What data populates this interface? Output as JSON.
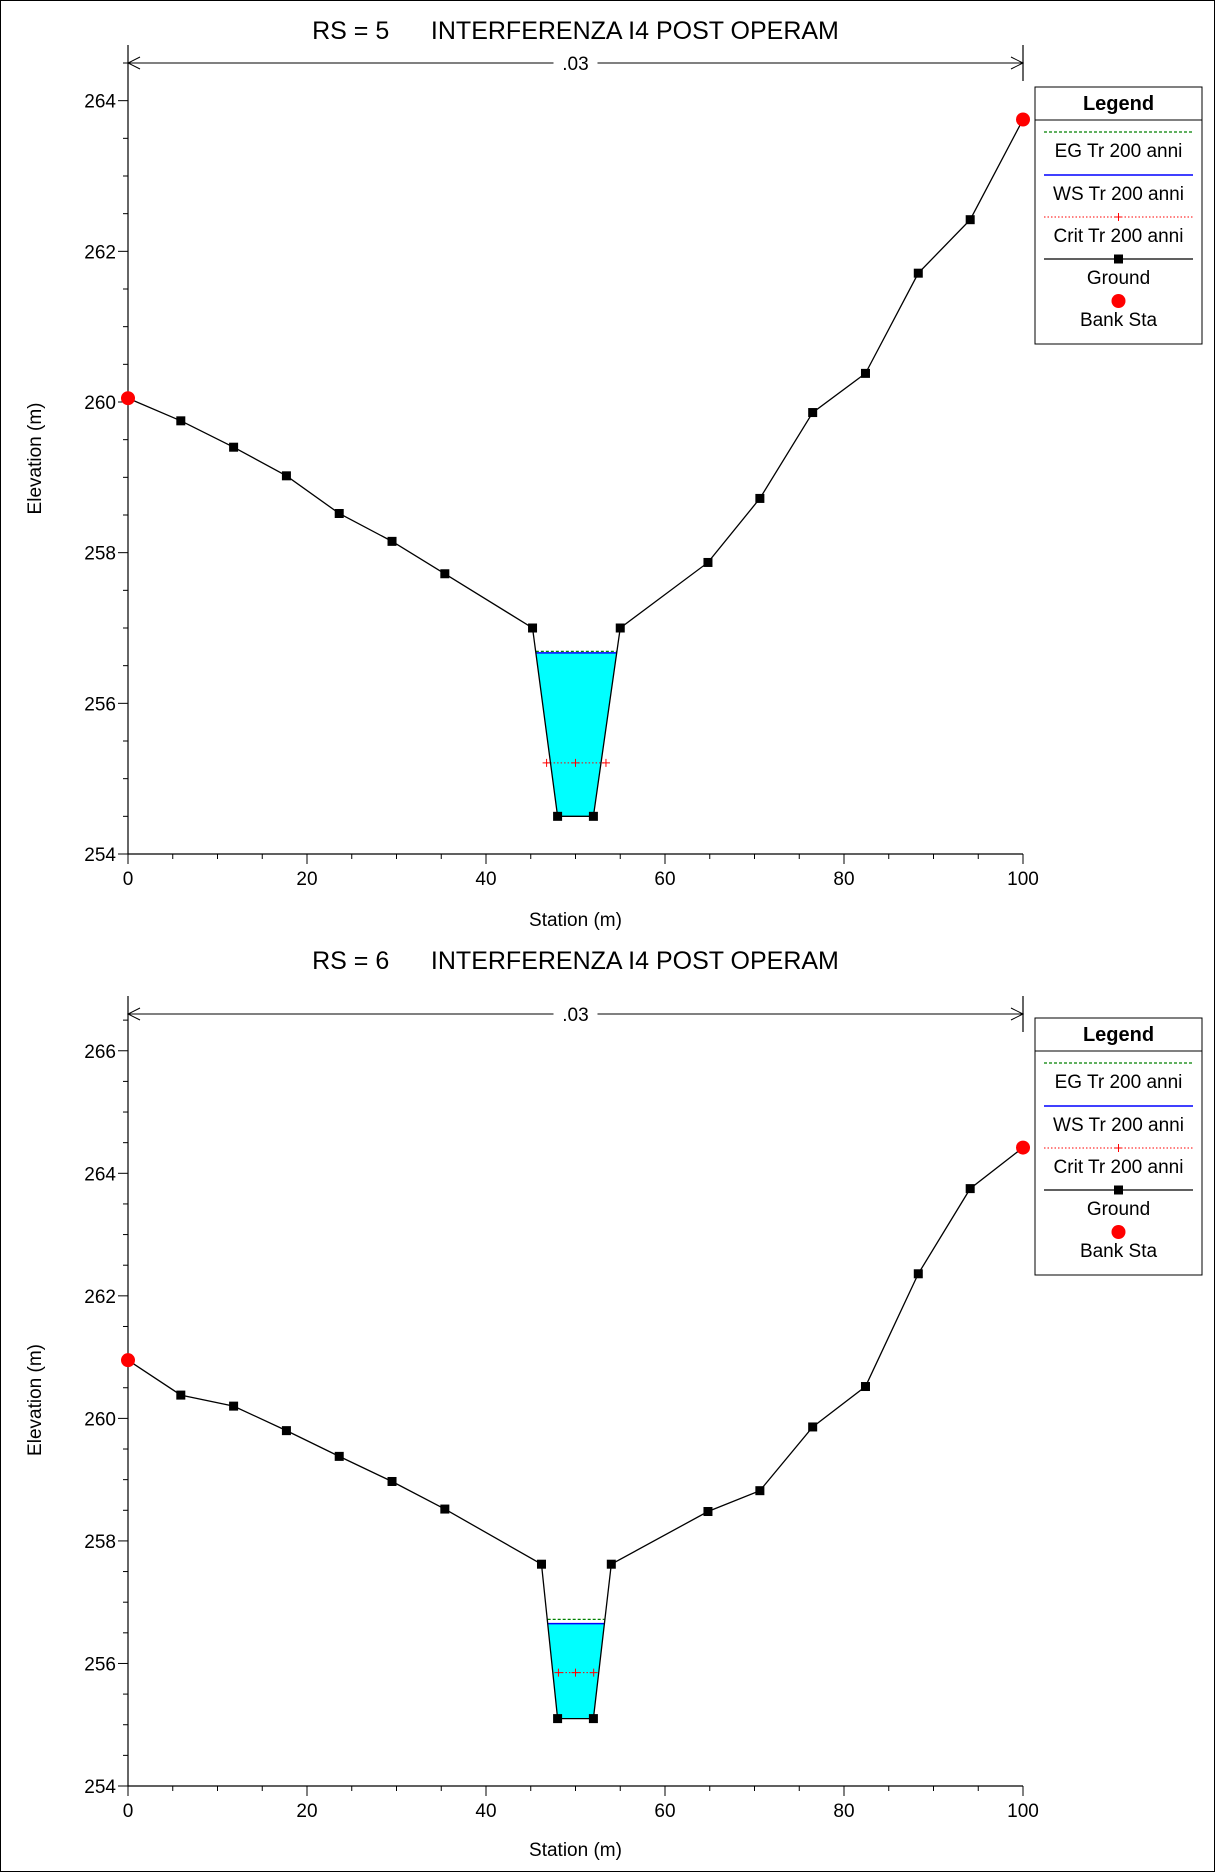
{
  "chart_data": [
    {
      "type": "line",
      "title": "RS = 5      INTERFERENZA I4 POST OPERAM",
      "xlabel": "Station (m)",
      "ylabel": "Elevation (m)",
      "xlim": [
        0,
        100
      ],
      "ylim": [
        254,
        264.5
      ],
      "x_ticks": [
        0,
        20,
        40,
        60,
        80,
        100
      ],
      "y_ticks": [
        254,
        256,
        258,
        260,
        262,
        264
      ],
      "manning_label": ".03",
      "manning_extent": [
        0,
        100
      ],
      "legend": {
        "title": "Legend",
        "entries": [
          "EG Tr 200 anni",
          "WS Tr 200 anni",
          "Crit Tr 200 anni",
          "Ground",
          "Bank Sta"
        ]
      },
      "series": [
        {
          "name": "Ground",
          "color": "#000000",
          "x": [
            0,
            5.9,
            11.8,
            17.7,
            23.6,
            29.5,
            35.4,
            45.2,
            48.0,
            52.0,
            55.0,
            64.8,
            70.6,
            76.5,
            82.4,
            88.3,
            94.1,
            100
          ],
          "y": [
            260.05,
            259.75,
            259.4,
            259.02,
            258.52,
            258.15,
            257.72,
            257.0,
            254.5,
            254.5,
            257.0,
            257.87,
            258.72,
            259.86,
            260.38,
            261.71,
            262.42,
            263.75
          ]
        },
        {
          "name": "Bank Sta",
          "color": "#ff0000",
          "x": [
            0,
            100
          ],
          "y": [
            260.05,
            263.75
          ]
        }
      ],
      "ws_elevation": 256.67,
      "eg_elevation": 256.69,
      "crit_elevation": 255.21,
      "crit_station": 50.0
    },
    {
      "type": "line",
      "title": "RS = 6      INTERFERENZA I4 POST OPERAM",
      "xlabel": "Station (m)",
      "ylabel": "Elevation (m)",
      "xlim": [
        0,
        100
      ],
      "ylim": [
        254,
        266.6
      ],
      "x_ticks": [
        0,
        20,
        40,
        60,
        80,
        100
      ],
      "y_ticks": [
        254,
        256,
        258,
        260,
        262,
        264,
        266
      ],
      "manning_label": ".03",
      "manning_extent": [
        0,
        100
      ],
      "legend": {
        "title": "Legend",
        "entries": [
          "EG Tr 200 anni",
          "WS Tr 200 anni",
          "Crit Tr 200 anni",
          "Ground",
          "Bank Sta"
        ]
      },
      "series": [
        {
          "name": "Ground",
          "color": "#000000",
          "x": [
            0,
            5.9,
            11.8,
            17.7,
            23.6,
            29.5,
            35.4,
            46.2,
            48.0,
            52.0,
            54.0,
            64.8,
            70.6,
            76.5,
            82.4,
            88.3,
            94.1,
            100
          ],
          "y": [
            260.95,
            260.38,
            260.2,
            259.8,
            259.38,
            258.97,
            258.52,
            257.62,
            255.1,
            255.1,
            257.62,
            258.48,
            258.82,
            259.86,
            260.52,
            262.36,
            263.75,
            264.42
          ]
        },
        {
          "name": "Bank Sta",
          "color": "#ff0000",
          "x": [
            0,
            100
          ],
          "y": [
            260.95,
            264.42
          ]
        }
      ],
      "ws_elevation": 256.65,
      "eg_elevation": 256.72,
      "crit_elevation": 255.85,
      "crit_station": 50.0
    }
  ]
}
